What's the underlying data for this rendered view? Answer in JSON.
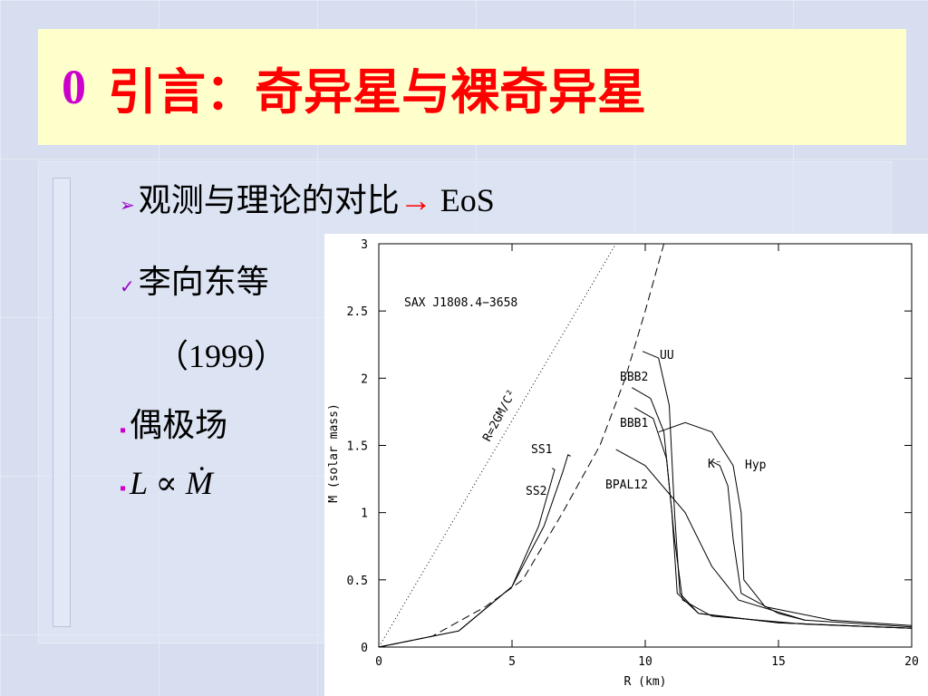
{
  "title": {
    "number": "0",
    "text": "引言：奇异星与裸奇异星"
  },
  "bullets": [
    {
      "text": "观测与理论的对比",
      "arrow": "→",
      "suffix": "EoS"
    },
    {
      "text": "李向东等"
    },
    {
      "text": "（1999）"
    },
    {
      "text": "偶极场"
    },
    {
      "l": "L",
      "prop": "∝",
      "m": "Ṁ"
    }
  ],
  "chart_data": {
    "type": "line",
    "annotation": "SAX J1808.4−3658",
    "xlabel": "R (km)",
    "ylabel": "M (solar mass)",
    "xlim": [
      0,
      20
    ],
    "ylim": [
      0,
      3
    ],
    "xticks": [
      0,
      5,
      10,
      15,
      20
    ],
    "yticks": [
      0,
      0.5,
      1,
      1.5,
      2,
      2.5,
      3
    ],
    "series": [
      {
        "name": "R=2GM/C²",
        "style": "dotted",
        "x": [
          0,
          8.9
        ],
        "values": [
          0,
          3
        ]
      },
      {
        "style": "dashed",
        "x": [
          0,
          2,
          4,
          5.4,
          6.9,
          8.3,
          9.25,
          10,
          10.7
        ],
        "values": [
          0,
          0.08,
          0.3,
          0.5,
          1,
          1.5,
          2,
          2.5,
          3
        ]
      },
      {
        "name": "SS1",
        "style": "solid",
        "x": [
          0,
          3,
          5,
          6.2,
          6.9,
          7.1,
          7.2
        ],
        "values": [
          0,
          0.12,
          0.45,
          0.9,
          1.3,
          1.43,
          1.42
        ]
      },
      {
        "name": "SS2",
        "style": "solid",
        "x": [
          0,
          3,
          5,
          6,
          6.5,
          6.6,
          6.5
        ],
        "values": [
          0,
          0.12,
          0.45,
          0.9,
          1.25,
          1.32,
          1.33
        ]
      },
      {
        "name": "UU",
        "style": "solid",
        "x": [
          9.9,
          10.5,
          10.9,
          11.1,
          11.3,
          12,
          15,
          20
        ],
        "values": [
          2.2,
          2.15,
          1.8,
          1,
          0.4,
          0.25,
          0.18,
          0.14
        ]
      },
      {
        "name": "BBB2",
        "style": "solid",
        "x": [
          9.5,
          10.2,
          10.7,
          11,
          11.2,
          12,
          15,
          20
        ],
        "values": [
          1.93,
          1.85,
          1.6,
          1,
          0.4,
          0.25,
          0.18,
          0.14
        ]
      },
      {
        "name": "BBB1",
        "style": "solid",
        "x": [
          9.6,
          10.3,
          10.8,
          11.1,
          11.4,
          12.5,
          16,
          20
        ],
        "values": [
          1.78,
          1.7,
          1.4,
          0.8,
          0.35,
          0.23,
          0.17,
          0.14
        ]
      },
      {
        "name": "BPAL12",
        "style": "solid",
        "x": [
          8.9,
          10,
          11.5,
          12.5,
          13.5,
          16,
          20
        ],
        "values": [
          1.47,
          1.35,
          1,
          0.6,
          0.35,
          0.2,
          0.15
        ]
      },
      {
        "name": "K⁻",
        "style": "solid",
        "x": [
          12.5,
          12.8,
          13.1,
          13.3,
          13.6,
          15,
          16
        ],
        "values": [
          1.38,
          1.35,
          1.2,
          0.8,
          0.4,
          0.25,
          0.2
        ]
      },
      {
        "name": "Hyp",
        "style": "solid",
        "x": [
          10.5,
          11.5,
          12.5,
          13.3,
          13.6,
          13.7,
          14.5,
          17,
          20
        ],
        "values": [
          1.6,
          1.67,
          1.6,
          1.35,
          1,
          0.5,
          0.3,
          0.2,
          0.16
        ]
      }
    ]
  }
}
